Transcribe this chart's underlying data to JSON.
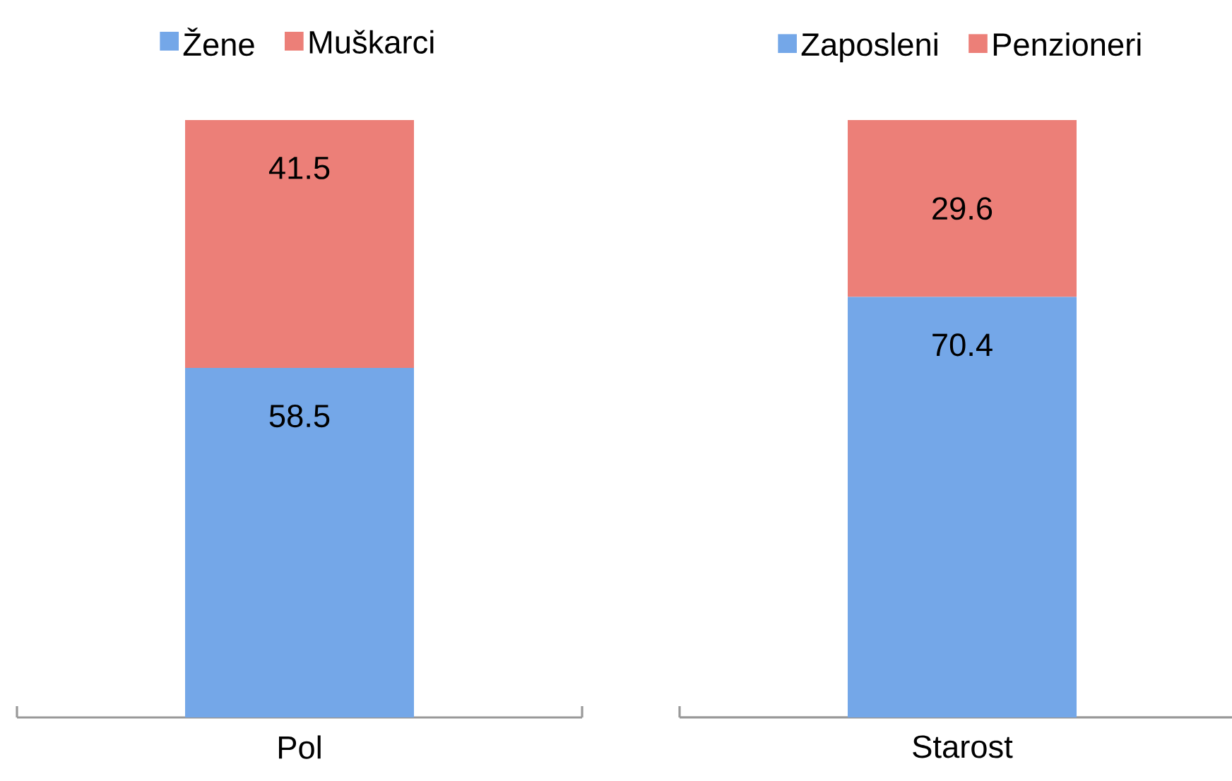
{
  "chart_data": [
    {
      "type": "bar",
      "stacked": true,
      "categories": [
        "Pol"
      ],
      "series": [
        {
          "name": "Žene",
          "color": "#74a7e8",
          "values": [
            58.5
          ]
        },
        {
          "name": "Muškarci",
          "color": "#ec7f78",
          "values": [
            41.5
          ]
        }
      ],
      "tick_labels": "x",
      "data_labels": true,
      "legend": "top"
    },
    {
      "type": "bar",
      "stacked": true,
      "categories": [
        "Starost"
      ],
      "series": [
        {
          "name": "Zaposleni",
          "color": "#74a7e8",
          "values": [
            70.4
          ]
        },
        {
          "name": "Penzioneri",
          "color": "#ec7f78",
          "values": [
            29.6
          ]
        }
      ],
      "tick_labels": "x",
      "data_labels": true,
      "legend": "top"
    }
  ]
}
